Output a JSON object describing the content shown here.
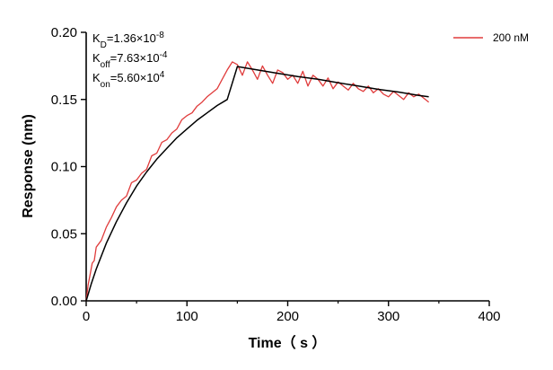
{
  "chart_data": {
    "type": "line",
    "xlabel": "Time（ s ）",
    "ylabel": "Response (nm)",
    "xlim": [
      0,
      400
    ],
    "ylim": [
      0,
      0.2
    ],
    "x_ticks": [
      "0",
      "100",
      "200",
      "300",
      "400"
    ],
    "y_ticks": [
      "0.00",
      "0.05",
      "0.10",
      "0.15",
      "0.20"
    ],
    "grid": false,
    "legend_position": "top-right",
    "annotations": [
      {
        "base": "K",
        "sub": "D",
        "mid": "=1.36×10",
        "sup": "-8"
      },
      {
        "base": "K",
        "sub": "off",
        "mid": "=7.63×10",
        "sup": "-4"
      },
      {
        "base": "K",
        "sub": "on",
        "mid": "=5.60×10",
        "sup": "4"
      }
    ],
    "series": [
      {
        "name": "200 nM",
        "color": "#e03c3c",
        "x": [
          0,
          2,
          4,
          6,
          8,
          10,
          15,
          20,
          25,
          30,
          35,
          40,
          45,
          50,
          55,
          60,
          65,
          70,
          75,
          80,
          85,
          90,
          95,
          100,
          105,
          110,
          115,
          120,
          125,
          130,
          135,
          140,
          145,
          150,
          155,
          160,
          165,
          170,
          175,
          180,
          185,
          190,
          195,
          200,
          205,
          210,
          215,
          220,
          225,
          230,
          235,
          240,
          245,
          250,
          255,
          260,
          265,
          270,
          275,
          280,
          285,
          290,
          295,
          300,
          305,
          310,
          315,
          320,
          325,
          330,
          335,
          340
        ],
        "y": [
          0.0,
          0.012,
          0.02,
          0.028,
          0.03,
          0.04,
          0.045,
          0.055,
          0.062,
          0.07,
          0.075,
          0.078,
          0.088,
          0.09,
          0.095,
          0.098,
          0.108,
          0.11,
          0.118,
          0.12,
          0.125,
          0.128,
          0.135,
          0.138,
          0.14,
          0.145,
          0.148,
          0.152,
          0.155,
          0.158,
          0.165,
          0.172,
          0.178,
          0.176,
          0.168,
          0.178,
          0.172,
          0.165,
          0.175,
          0.168,
          0.162,
          0.172,
          0.17,
          0.165,
          0.168,
          0.162,
          0.171,
          0.16,
          0.168,
          0.165,
          0.16,
          0.166,
          0.158,
          0.163,
          0.16,
          0.157,
          0.162,
          0.158,
          0.156,
          0.16,
          0.155,
          0.158,
          0.154,
          0.152,
          0.156,
          0.153,
          0.15,
          0.155,
          0.152,
          0.154,
          0.151,
          0.148
        ]
      },
      {
        "name": "",
        "color": "#000000",
        "x": [
          0,
          5,
          10,
          20,
          30,
          40,
          50,
          60,
          70,
          80,
          90,
          100,
          110,
          120,
          130,
          140,
          150,
          170,
          190,
          210,
          230,
          250,
          270,
          290,
          310,
          330,
          340
        ],
        "y": [
          0.0,
          0.0125,
          0.0237,
          0.043,
          0.059,
          0.073,
          0.0855,
          0.096,
          0.1055,
          0.1135,
          0.1215,
          0.128,
          0.1345,
          0.14,
          0.1455,
          0.15,
          0.1745,
          0.172,
          0.1695,
          0.167,
          0.165,
          0.1625,
          0.16,
          0.1575,
          0.1555,
          0.153,
          0.152
        ]
      }
    ]
  }
}
